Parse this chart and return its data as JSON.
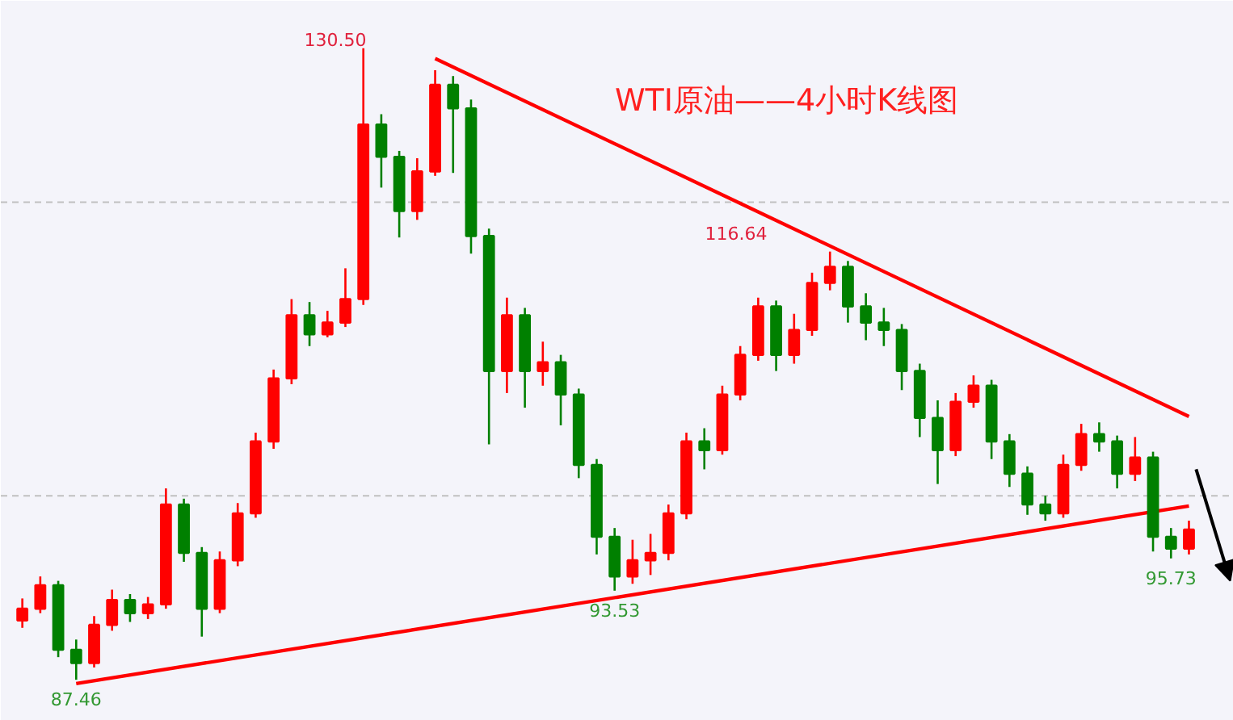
{
  "chart_data": {
    "type": "candlestick",
    "title": "WTI原油——4小时K线图",
    "categories": [
      null,
      null,
      null,
      null,
      null,
      null,
      null,
      null,
      null,
      null,
      null,
      null,
      null,
      null,
      null,
      null,
      null,
      null,
      null,
      null,
      null,
      null,
      null,
      null,
      null,
      null,
      null,
      null,
      null,
      null,
      null,
      null,
      null,
      null,
      null,
      null,
      null,
      null,
      null,
      null,
      null,
      null,
      null,
      null,
      null,
      null,
      null,
      null,
      null,
      null,
      null,
      null,
      null,
      null,
      null,
      null,
      null,
      null,
      null,
      null,
      null,
      null,
      null,
      null,
      null,
      null
    ],
    "colors": [
      "#ff0000",
      "#ff0000",
      "#008000",
      "#008000",
      "#ff0000",
      "#ff0000",
      "#008000",
      "#ff0000",
      "#ff0000",
      "#008000",
      "#008000",
      "#ff0000",
      "#ff0000",
      "#ff0000",
      "#ff0000",
      "#ff0000",
      "#008000",
      "#ff0000",
      "#ff0000",
      "#ff0000",
      "#008000",
      "#008000",
      "#ff0000",
      "#ff0000",
      "#008000",
      "#008000",
      "#008000",
      "#ff0000",
      "#008000",
      "#ff0000",
      "#008000",
      "#008000",
      "#008000",
      "#008000",
      "#ff0000",
      "#ff0000",
      "#ff0000",
      "#ff0000",
      "#008000",
      "#ff0000",
      "#ff0000",
      "#ff0000",
      "#008000",
      "#ff0000",
      "#ff0000",
      "#ff0000",
      "#008000",
      "#008000",
      "#008000",
      "#008000",
      "#008000",
      "#008000",
      "#ff0000",
      "#ff0000",
      "#008000",
      "#008000",
      "#008000",
      "#008000",
      "#ff0000",
      "#ff0000",
      "#008000",
      "#008000",
      "#ff0000",
      "#008000",
      "#008000",
      "#ff0000"
    ],
    "ohlc": [
      [
        91.5,
        93.0,
        91.0,
        92.3
      ],
      [
        92.3,
        94.5,
        92.0,
        93.9
      ],
      [
        93.9,
        94.2,
        89.0,
        89.5
      ],
      [
        89.5,
        90.2,
        87.46,
        88.6
      ],
      [
        88.6,
        91.8,
        88.3,
        91.2
      ],
      [
        91.2,
        93.6,
        90.8,
        92.9
      ],
      [
        92.9,
        93.3,
        91.4,
        92.0
      ],
      [
        92.0,
        93.1,
        91.6,
        92.6
      ],
      [
        92.6,
        100.5,
        92.3,
        99.4
      ],
      [
        99.4,
        99.8,
        95.5,
        96.1
      ],
      [
        96.1,
        96.5,
        90.4,
        92.3
      ],
      [
        92.3,
        96.2,
        92.0,
        95.6
      ],
      [
        95.6,
        99.5,
        95.2,
        98.8
      ],
      [
        98.8,
        104.3,
        98.5,
        103.7
      ],
      [
        103.7,
        108.6,
        103.2,
        108.0
      ],
      [
        108.0,
        113.4,
        107.6,
        112.3
      ],
      [
        112.3,
        113.2,
        110.2,
        111.0
      ],
      [
        111.0,
        112.6,
        110.8,
        111.8
      ],
      [
        111.8,
        115.5,
        111.5,
        113.4
      ],
      [
        113.4,
        130.5,
        113.0,
        125.3
      ],
      [
        125.3,
        126.0,
        121.0,
        123.1
      ],
      [
        123.1,
        123.5,
        117.6,
        119.4
      ],
      [
        119.4,
        123.0,
        118.8,
        122.1
      ],
      [
        122.1,
        129.0,
        121.8,
        128.0
      ],
      [
        128.0,
        128.6,
        122.0,
        126.4
      ],
      [
        126.4,
        127.0,
        116.5,
        117.7
      ],
      [
        117.7,
        118.2,
        103.5,
        108.5
      ],
      [
        108.5,
        113.5,
        107.0,
        112.3
      ],
      [
        112.3,
        112.8,
        106.0,
        108.5
      ],
      [
        108.5,
        110.5,
        107.5,
        109.1
      ],
      [
        109.1,
        109.6,
        104.8,
        106.9
      ],
      [
        106.9,
        107.3,
        101.2,
        102.1
      ],
      [
        102.1,
        102.5,
        96.0,
        97.2
      ],
      [
        97.2,
        97.8,
        93.53,
        94.5
      ],
      [
        94.5,
        97.0,
        94.0,
        95.6
      ],
      [
        95.6,
        97.4,
        94.6,
        96.1
      ],
      [
        96.1,
        99.4,
        95.6,
        98.8
      ],
      [
        98.8,
        104.3,
        98.4,
        103.7
      ],
      [
        103.7,
        104.6,
        101.8,
        103.1
      ],
      [
        103.1,
        107.5,
        102.8,
        106.9
      ],
      [
        106.9,
        110.2,
        106.5,
        109.6
      ],
      [
        109.6,
        113.5,
        109.2,
        112.9
      ],
      [
        112.9,
        113.3,
        108.5,
        109.6
      ],
      [
        109.6,
        112.4,
        109.0,
        111.3
      ],
      [
        111.3,
        115.2,
        110.9,
        114.5
      ],
      [
        114.5,
        116.64,
        114.0,
        115.6
      ],
      [
        115.6,
        116.0,
        111.8,
        112.9
      ],
      [
        112.9,
        113.8,
        110.6,
        111.8
      ],
      [
        111.8,
        112.8,
        110.2,
        111.3
      ],
      [
        111.3,
        111.7,
        107.2,
        108.5
      ],
      [
        108.5,
        109.0,
        104.0,
        105.3
      ],
      [
        105.3,
        106.5,
        100.8,
        103.1
      ],
      [
        103.1,
        107.0,
        102.7,
        106.4
      ],
      [
        106.4,
        108.2,
        106.0,
        107.5
      ],
      [
        107.5,
        107.9,
        102.5,
        103.7
      ],
      [
        103.7,
        104.2,
        100.6,
        101.5
      ],
      [
        101.5,
        102.0,
        98.7,
        99.4
      ],
      [
        99.4,
        100.0,
        98.3,
        98.8
      ],
      [
        98.8,
        102.8,
        98.5,
        102.1
      ],
      [
        102.1,
        104.9,
        101.7,
        104.2
      ],
      [
        104.2,
        105.0,
        103.0,
        103.7
      ],
      [
        103.7,
        104.1,
        100.5,
        101.5
      ],
      [
        101.5,
        104.0,
        101.0,
        102.6
      ],
      [
        102.6,
        103.0,
        96.2,
        97.2
      ],
      [
        97.2,
        97.8,
        95.73,
        96.4
      ],
      [
        96.4,
        98.3,
        96.0,
        97.7
      ]
    ],
    "series": [
      {
        "type": "line",
        "color": "#ff0000",
        "values": [
          null,
          null,
          null,
          null,
          null,
          null,
          null,
          null,
          null,
          null,
          null,
          null,
          null,
          null,
          null,
          null,
          null,
          null,
          null,
          null,
          null,
          null,
          null,
          129.8,
          null,
          null,
          null,
          null,
          null,
          null,
          null,
          null,
          null,
          null,
          null,
          null,
          null,
          null,
          null,
          null,
          null,
          null,
          null,
          null,
          null,
          null,
          null,
          null,
          null,
          null,
          null,
          null,
          null,
          null,
          null,
          null,
          null,
          null,
          null,
          null,
          null,
          null,
          null,
          null,
          null,
          105.4
        ]
      },
      {
        "type": "line",
        "color": "#ff0000",
        "values": [
          null,
          null,
          null,
          87.2,
          null,
          null,
          null,
          null,
          null,
          null,
          null,
          null,
          null,
          null,
          null,
          null,
          null,
          null,
          null,
          null,
          null,
          null,
          null,
          null,
          null,
          null,
          null,
          null,
          null,
          null,
          null,
          null,
          null,
          null,
          null,
          null,
          null,
          null,
          null,
          null,
          null,
          null,
          null,
          null,
          null,
          null,
          null,
          null,
          null,
          null,
          null,
          null,
          null,
          null,
          null,
          null,
          null,
          null,
          null,
          null,
          null,
          null,
          null,
          null,
          null,
          99.3
        ]
      }
    ],
    "ref_lines": [
      {
        "axis": "y",
        "value": 120,
        "color": "#c0c0c0",
        "line_style": "dashed"
      },
      {
        "axis": "y",
        "value": 100,
        "color": "#c0c0c0",
        "line_style": "dashed"
      }
    ],
    "annotations": [
      "130.50",
      "116.64",
      {
        "text": "93.53",
        "y": 93.53
      },
      {
        "text": "95.73",
        "y": 95.73
      },
      {
        "text": "87.46",
        "y": 87.46
      }
    ],
    "tick_labels": false,
    "grid": false
  }
}
